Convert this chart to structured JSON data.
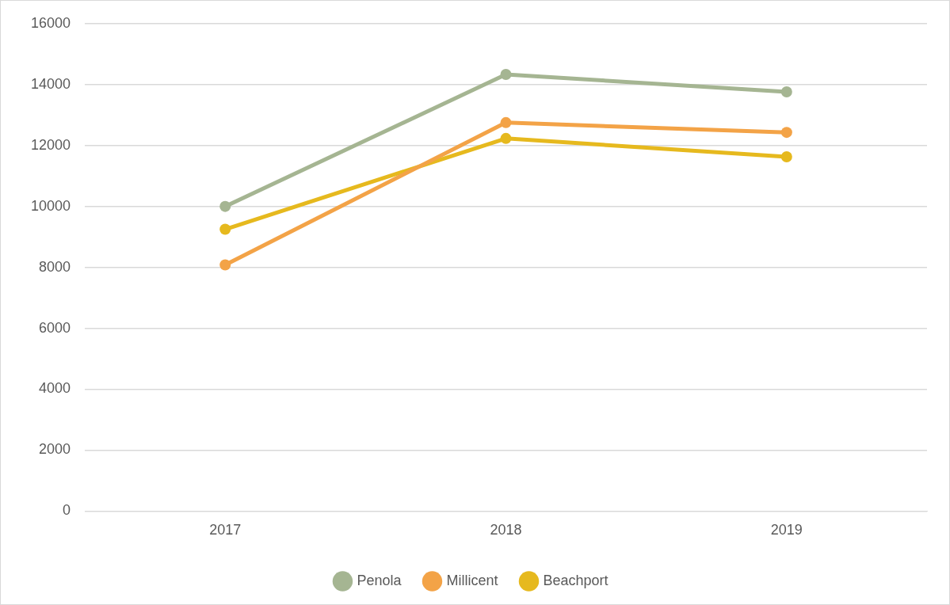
{
  "chart_data": {
    "type": "line",
    "categories": [
      "2017",
      "2018",
      "2019"
    ],
    "series": [
      {
        "name": "Penola",
        "color": "#a5b592",
        "values": [
          10000,
          14330,
          13760
        ]
      },
      {
        "name": "Millicent",
        "color": "#f3a347",
        "values": [
          8080,
          12750,
          12430
        ]
      },
      {
        "name": "Beachport",
        "color": "#e6b91e",
        "values": [
          9250,
          12230,
          11630
        ]
      }
    ],
    "ylim": [
      0,
      16000
    ],
    "yticks": [
      0,
      2000,
      4000,
      6000,
      8000,
      10000,
      12000,
      14000,
      16000
    ],
    "grid": "y",
    "legend": "bottom",
    "marker": "circle",
    "line_style": "solid"
  }
}
